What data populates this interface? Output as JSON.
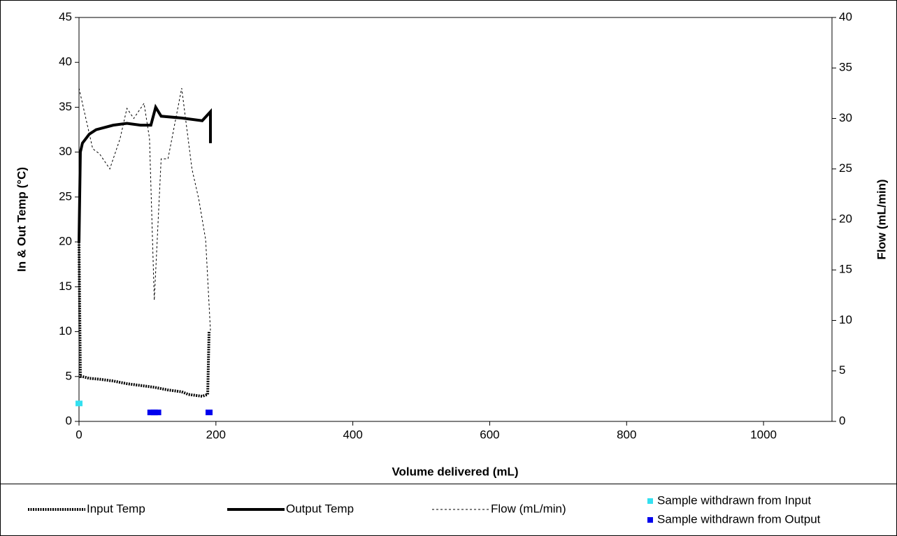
{
  "chart_data": {
    "type": "line",
    "xlabel": "Volume delivered (mL)",
    "ylabel": "In & Out Temp (°C)",
    "y2label": "Flow (mL/min)",
    "xlim": [
      0,
      1100
    ],
    "xticks": [
      0,
      200,
      400,
      600,
      800,
      1000
    ],
    "ylim": [
      0,
      45
    ],
    "yticks": [
      0,
      5,
      10,
      15,
      20,
      25,
      30,
      35,
      40,
      45
    ],
    "y2lim": [
      0,
      40
    ],
    "y2ticks": [
      0,
      5,
      10,
      15,
      20,
      25,
      30,
      35,
      40
    ],
    "series": [
      {
        "name": "Input Temp",
        "color": "#000000",
        "style": "dotted",
        "x": [
          0,
          2,
          5,
          15,
          30,
          50,
          70,
          90,
          110,
          130,
          150,
          160,
          180,
          188,
          190
        ],
        "values": [
          20,
          5,
          5,
          4.8,
          4.7,
          4.5,
          4.2,
          4,
          3.8,
          3.5,
          3.3,
          3,
          2.8,
          3,
          10
        ]
      },
      {
        "name": "Output Temp",
        "color": "#000000",
        "style": "solid",
        "x": [
          0,
          2,
          5,
          15,
          25,
          50,
          70,
          90,
          105,
          112,
          120,
          150,
          180,
          192,
          192
        ],
        "values": [
          20,
          30,
          31,
          32,
          32.5,
          33,
          33.2,
          33,
          33,
          35,
          34,
          33.8,
          33.5,
          34.5,
          31
        ]
      },
      {
        "name": "Flow (mL/min)",
        "color": "#000000",
        "style": "dashed",
        "axis": "y2",
        "x": [
          0,
          10,
          20,
          30,
          45,
          60,
          70,
          80,
          95,
          103,
          110,
          120,
          130,
          150,
          165,
          175,
          185,
          192
        ],
        "values": [
          33,
          30,
          27,
          26.5,
          25,
          28,
          31,
          30,
          31.5,
          28,
          12,
          26,
          26,
          33,
          25,
          22,
          18,
          9
        ]
      },
      {
        "name": "Sample withdrawn from Input",
        "color": "#33e0f0",
        "style": "marker",
        "x": [
          0
        ],
        "values": [
          2
        ]
      },
      {
        "name": "Sample withdrawn from Output",
        "color": "#0000ee",
        "style": "marker",
        "x": [
          105,
          110,
          115,
          190
        ],
        "values": [
          1,
          1,
          1,
          1
        ]
      }
    ]
  }
}
